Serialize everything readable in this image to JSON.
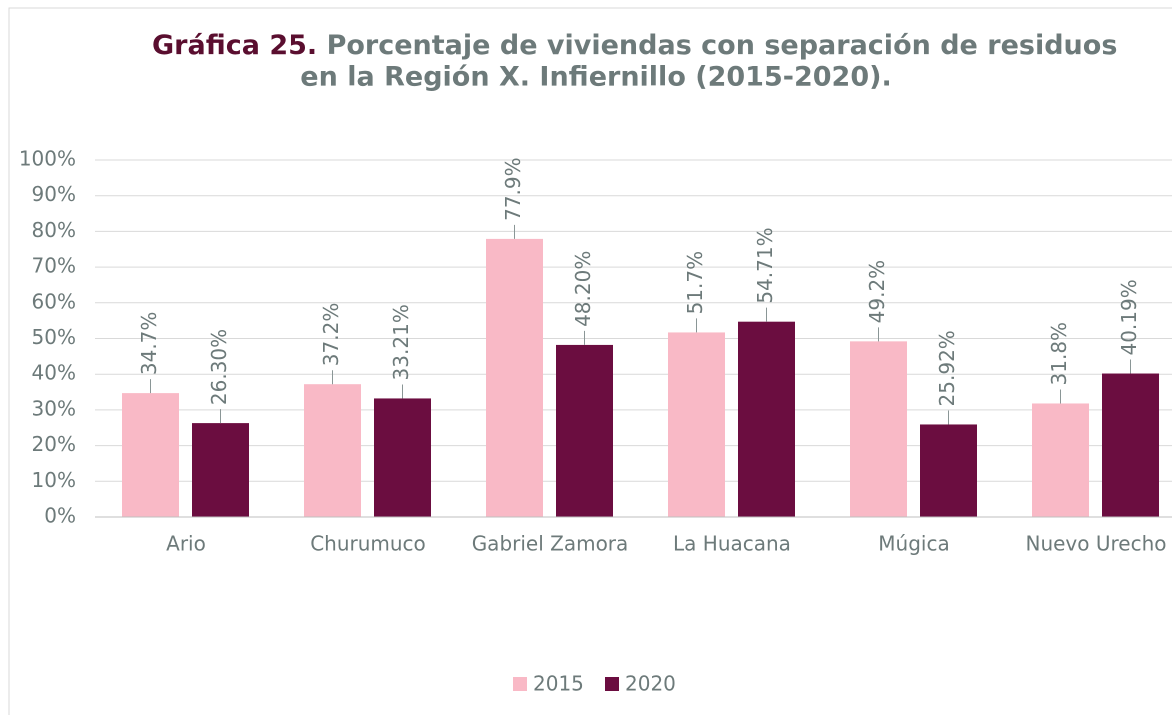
{
  "chart_data": {
    "type": "bar",
    "title_label": "Gráfica 25.",
    "title_lines": [
      "Porcentaje de viviendas con separación de residuos",
      "en la Región X. Infiernillo (2015-2020)."
    ],
    "categories": [
      "Ario",
      "Churumuco",
      "Gabriel Zamora",
      "La Huacana",
      "Múgica",
      "Nuevo Urecho"
    ],
    "series": [
      {
        "name": "2015",
        "color": "#f9b9c6",
        "values": [
          34.7,
          37.2,
          77.9,
          51.7,
          49.2,
          31.8
        ],
        "value_labels": [
          "34.7%",
          "37.2%",
          "77.9%",
          "51.7%",
          "49.2%",
          "31.8%"
        ]
      },
      {
        "name": "2020",
        "color": "#6b0d40",
        "values": [
          26.3,
          33.21,
          48.2,
          54.71,
          25.92,
          40.19
        ],
        "value_labels": [
          "26.30%",
          "33.21%",
          "48.20%",
          "54.71%",
          "25.92%",
          "40.19%"
        ]
      }
    ],
    "ylim": [
      0,
      100
    ],
    "yticks": [
      {
        "value": 0,
        "label": "0%"
      },
      {
        "value": 10,
        "label": "10%"
      },
      {
        "value": 20,
        "label": "20%"
      },
      {
        "value": 30,
        "label": "30%"
      },
      {
        "value": 40,
        "label": "40%"
      },
      {
        "value": 50,
        "label": "50%"
      },
      {
        "value": 60,
        "label": "60%"
      },
      {
        "value": 70,
        "label": "70%"
      },
      {
        "value": 80,
        "label": "80%"
      },
      {
        "value": 90,
        "label": "90%"
      },
      {
        "value": 100,
        "label": "100%"
      }
    ],
    "grid": true,
    "legend": "bottom"
  }
}
